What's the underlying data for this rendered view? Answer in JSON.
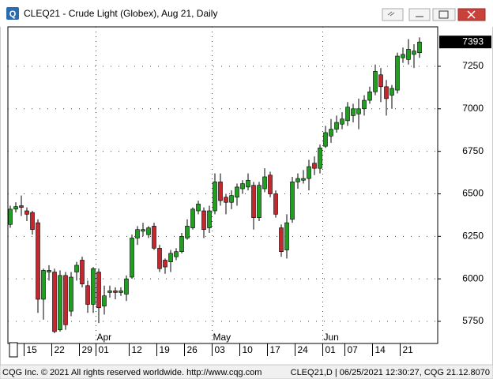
{
  "chart_data": {
    "type": "candlestick",
    "title": "CLEQ21 - Crude Light (Globex), Aug 21, Daily",
    "categories": [
      null,
      null,
      null,
      "15",
      null,
      null,
      null,
      null,
      "22",
      null,
      null,
      null,
      null,
      "29",
      null,
      null,
      "01",
      null,
      null,
      null,
      null,
      null,
      "12",
      null,
      null,
      null,
      null,
      "19",
      null,
      null,
      null,
      null,
      "26",
      null,
      null,
      null,
      null,
      "03",
      null,
      null,
      null,
      null,
      "10",
      null,
      null,
      null,
      null,
      "17",
      null,
      null,
      null,
      null,
      "24",
      null,
      null,
      null,
      null,
      "01",
      null,
      null,
      null,
      "07",
      null,
      null,
      null,
      null,
      "14",
      null,
      null,
      null,
      null,
      "21",
      null,
      null,
      null
    ],
    "month_labels": [
      null,
      null,
      null,
      null,
      null,
      null,
      null,
      null,
      null,
      null,
      null,
      null,
      null,
      null,
      null,
      null,
      "Apr",
      null,
      null,
      null,
      null,
      null,
      null,
      null,
      null,
      null,
      null,
      null,
      null,
      null,
      null,
      null,
      null,
      null,
      null,
      null,
      null,
      "May",
      null,
      null,
      null,
      null,
      null,
      null,
      null,
      null,
      null,
      null,
      null,
      null,
      null,
      null,
      null,
      null,
      null,
      null,
      null,
      "Jun",
      null,
      null,
      null,
      null,
      null,
      null,
      null,
      null,
      null,
      null,
      null,
      null,
      null,
      null,
      null,
      null,
      null
    ],
    "open": [
      6320,
      6410,
      6430,
      6400,
      6390,
      6330,
      5880,
      6040,
      6040,
      5700,
      6020,
      5810,
      6040,
      6110,
      5960,
      5850,
      6040,
      5840,
      5920,
      5930,
      5920,
      5910,
      6010,
      6240,
      6280,
      6260,
      6310,
      6180,
      6110,
      6100,
      6130,
      6160,
      6240,
      6300,
      6400,
      6400,
      6300,
      6400,
      6570,
      6480,
      6450,
      6480,
      6530,
      6540,
      6550,
      6360,
      6530,
      6610,
      6500,
      6300,
      6170,
      6350,
      6570,
      6580,
      6590,
      6680,
      6650,
      6780,
      6840,
      6880,
      6910,
      6930,
      6960,
      6970,
      7000,
      7050,
      7100,
      7200,
      7130,
      7080,
      7110,
      7300,
      7290,
      7320,
      7330
    ],
    "high": [
      6430,
      6450,
      6490,
      6420,
      6400,
      6350,
      6060,
      6080,
      6060,
      6050,
      6040,
      6040,
      6100,
      6130,
      5990,
      6070,
      6060,
      5960,
      5960,
      5950,
      5950,
      6020,
      6260,
      6310,
      6330,
      6310,
      6330,
      6200,
      6120,
      6170,
      6180,
      6270,
      6350,
      6420,
      6460,
      6420,
      6430,
      6620,
      6620,
      6500,
      6520,
      6560,
      6580,
      6620,
      6570,
      6570,
      6650,
      6630,
      6520,
      6320,
      6380,
      6600,
      6620,
      6640,
      6700,
      6720,
      6790,
      6900,
      6940,
      6960,
      6980,
      7040,
      7030,
      7060,
      7080,
      7130,
      7260,
      7240,
      7170,
      7140,
      7330,
      7360,
      7410,
      7380,
      7420
    ],
    "low": [
      6300,
      6390,
      6370,
      6340,
      6260,
      5800,
      5760,
      5990,
      5680,
      5690,
      5700,
      5780,
      5990,
      5950,
      5800,
      5800,
      5740,
      5790,
      5890,
      5880,
      5900,
      5870,
      6000,
      6200,
      6250,
      6240,
      6170,
      6040,
      6030,
      6040,
      6110,
      6150,
      6230,
      6290,
      6380,
      6240,
      6270,
      6380,
      6430,
      6380,
      6410,
      6430,
      6500,
      6520,
      6290,
      6340,
      6510,
      6480,
      6360,
      6130,
      6120,
      6330,
      6530,
      6560,
      6520,
      6610,
      6620,
      6770,
      6800,
      6860,
      6880,
      6900,
      6920,
      6880,
      6960,
      7030,
      7080,
      7040,
      6960,
      7000,
      7090,
      7270,
      7260,
      7240,
      7300
    ],
    "close": [
      6410,
      6425,
      6420,
      6380,
      6290,
      5880,
      6050,
      6050,
      5690,
      6020,
      5730,
      6010,
      6080,
      5970,
      5850,
      6060,
      5830,
      5900,
      5930,
      5920,
      5930,
      6000,
      6240,
      6290,
      6290,
      6300,
      6180,
      6060,
      6070,
      6150,
      6160,
      6250,
      6310,
      6410,
      6440,
      6290,
      6400,
      6570,
      6460,
      6450,
      6490,
      6540,
      6560,
      6580,
      6360,
      6550,
      6600,
      6500,
      6380,
      6160,
      6330,
      6570,
      6590,
      6590,
      6660,
      6650,
      6770,
      6860,
      6880,
      6920,
      6940,
      7010,
      7000,
      7000,
      7050,
      7100,
      7220,
      7130,
      7060,
      7120,
      7310,
      7320,
      7350,
      7340,
      7393
    ],
    "up_color": "#1f9e1f",
    "down_color": "#c2282e",
    "last_price": 7393,
    "ylim": [
      5620,
      7482
    ],
    "yticks": [
      5750,
      6000,
      6250,
      6500,
      6750,
      7000,
      7250
    ],
    "grid": true
  },
  "footer": {
    "left": "CQG Inc. © 2021 All rights reserved worldwide. http://www.cqg.com",
    "right": "CLEQ21,D | 06/25/2021 12:30:27, CQG 21.12.8070"
  }
}
